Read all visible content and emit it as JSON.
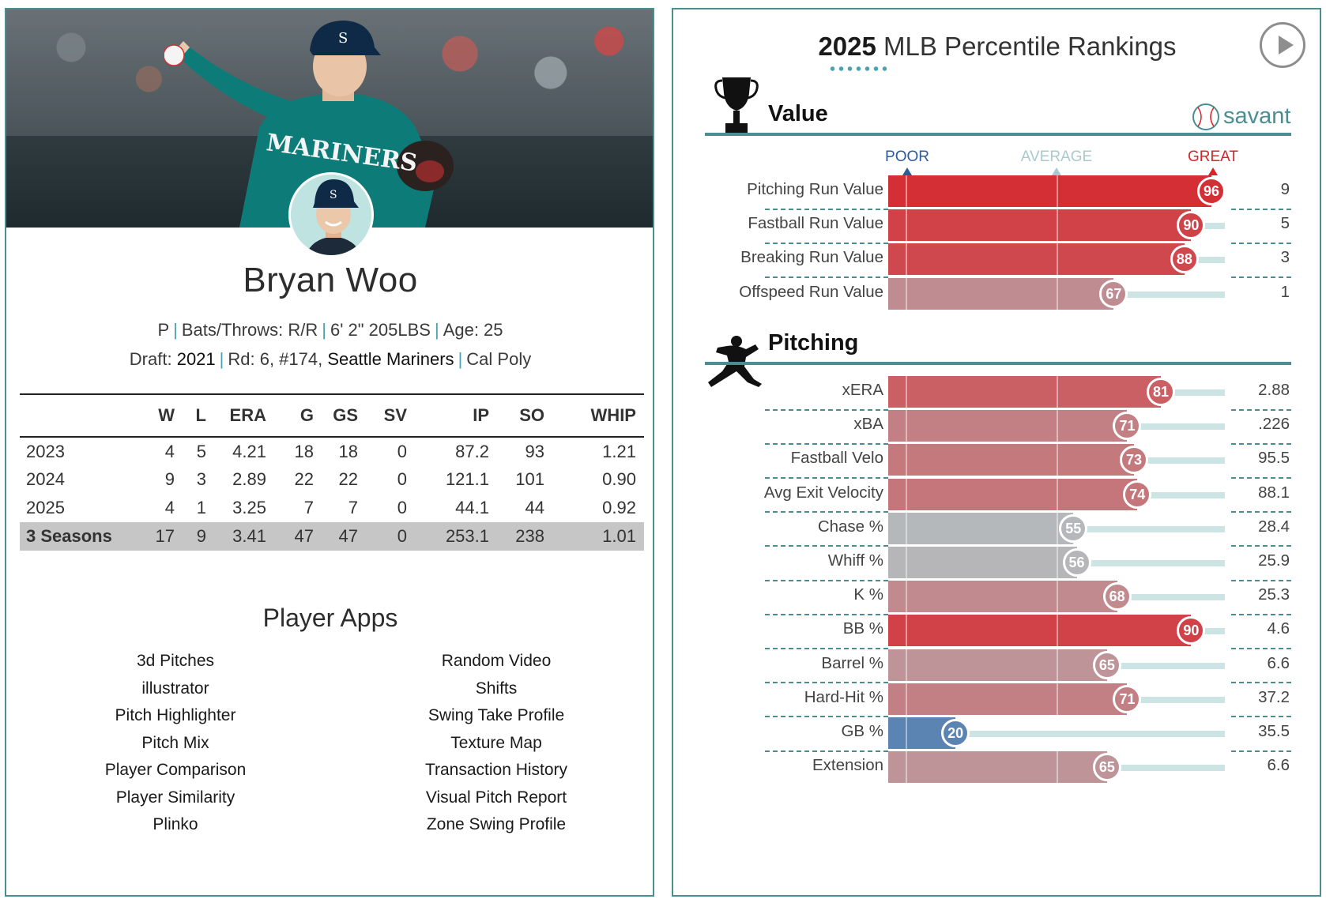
{
  "player": {
    "name": "Bryan Woo",
    "bio": {
      "position": "P",
      "bats_throws": "Bats/Throws: R/R",
      "size": "6' 2\" 205LBS",
      "age": "Age: 25"
    },
    "draft": {
      "label": "Draft:",
      "year": "2021",
      "round": "Rd: 6, #174,",
      "team": "Seattle Mariners",
      "school": "Cal Poly"
    },
    "photo_alt": "Bryan Woo pitching"
  },
  "stats": {
    "headers": [
      "",
      "W",
      "L",
      "ERA",
      "G",
      "GS",
      "SV",
      "IP",
      "SO",
      "WHIP"
    ],
    "rows": [
      [
        "2023",
        "4",
        "5",
        "4.21",
        "18",
        "18",
        "0",
        "87.2",
        "93",
        "1.21"
      ],
      [
        "2024",
        "9",
        "3",
        "2.89",
        "22",
        "22",
        "0",
        "121.1",
        "101",
        "0.90"
      ],
      [
        "2025",
        "4",
        "1",
        "3.25",
        "7",
        "7",
        "0",
        "44.1",
        "44",
        "0.92"
      ]
    ],
    "total": [
      "3 Seasons",
      "17",
      "9",
      "3.41",
      "47",
      "47",
      "0",
      "253.1",
      "238",
      "1.01"
    ]
  },
  "apps": {
    "title": "Player Apps",
    "col1": [
      "3d Pitches",
      "illustrator",
      "Pitch Highlighter",
      "Pitch Mix",
      "Player Comparison",
      "Player Similarity",
      "Plinko"
    ],
    "col2": [
      "Random Video",
      "Shifts",
      "Swing Take Profile",
      "Texture Map",
      "Transaction History",
      "Visual Pitch Report",
      "Zone Swing Profile"
    ]
  },
  "rankings": {
    "title_year": "2025",
    "title_rest": "MLB Percentile Rankings",
    "savant_label": "savant",
    "scale": {
      "poor": "POOR",
      "average": "AVERAGE",
      "great": "GREAT"
    },
    "scale_colors": {
      "poor": "#2c5aa0",
      "average": "#a9c9cc",
      "great": "#d8232a"
    },
    "sections": [
      {
        "title": "Value",
        "icon": "trophy-icon",
        "metrics": [
          {
            "name": "Pitching Run Value",
            "percentile": 96,
            "value": "9"
          },
          {
            "name": "Fastball Run Value",
            "percentile": 90,
            "value": "5"
          },
          {
            "name": "Breaking Run Value",
            "percentile": 88,
            "value": "3"
          },
          {
            "name": "Offspeed Run Value",
            "percentile": 67,
            "value": "1"
          }
        ]
      },
      {
        "title": "Pitching",
        "icon": "pitcher-icon",
        "metrics": [
          {
            "name": "xERA",
            "percentile": 81,
            "value": "2.88"
          },
          {
            "name": "xBA",
            "percentile": 71,
            "value": ".226"
          },
          {
            "name": "Fastball Velo",
            "percentile": 73,
            "value": "95.5"
          },
          {
            "name": "Avg Exit Velocity",
            "percentile": 74,
            "value": "88.1"
          },
          {
            "name": "Chase %",
            "percentile": 55,
            "value": "28.4"
          },
          {
            "name": "Whiff %",
            "percentile": 56,
            "value": "25.9"
          },
          {
            "name": "K %",
            "percentile": 68,
            "value": "25.3"
          },
          {
            "name": "BB %",
            "percentile": 90,
            "value": "4.6"
          },
          {
            "name": "Barrel %",
            "percentile": 65,
            "value": "6.6"
          },
          {
            "name": "Hard-Hit %",
            "percentile": 71,
            "value": "37.2"
          },
          {
            "name": "GB %",
            "percentile": 20,
            "value": "35.5"
          },
          {
            "name": "Extension",
            "percentile": 65,
            "value": "6.6"
          }
        ]
      }
    ]
  }
}
